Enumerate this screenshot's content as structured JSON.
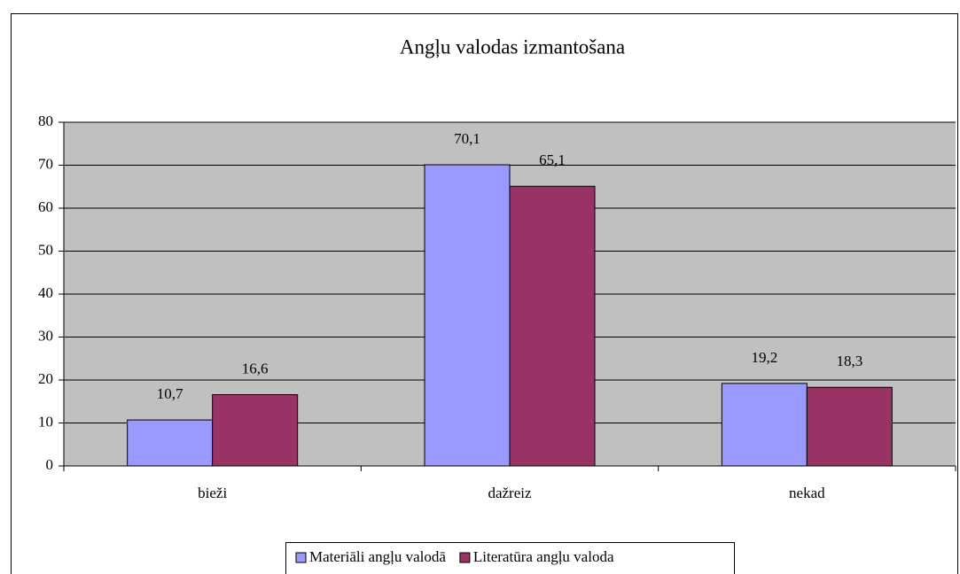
{
  "chart_data": {
    "type": "bar",
    "title": "Angļu valodas izmantošana",
    "categories": [
      "bieži",
      "dažreiz",
      "nekad"
    ],
    "series": [
      {
        "name": "Materiāli angļu valodā",
        "color": "#9999ff",
        "values": [
          10.7,
          70.1,
          19.2
        ],
        "value_labels": [
          "10,7",
          "70,1",
          "19,2"
        ]
      },
      {
        "name": "Literatūra angļu valoda",
        "color": "#993366",
        "values": [
          16.6,
          65.1,
          18.3
        ],
        "value_labels": [
          "16,6",
          "65,1",
          "18,3"
        ]
      }
    ],
    "ylim": [
      0,
      80
    ],
    "yticks": [
      0,
      10,
      20,
      30,
      40,
      50,
      60,
      70,
      80
    ],
    "grid": true,
    "legend": "bottom"
  }
}
